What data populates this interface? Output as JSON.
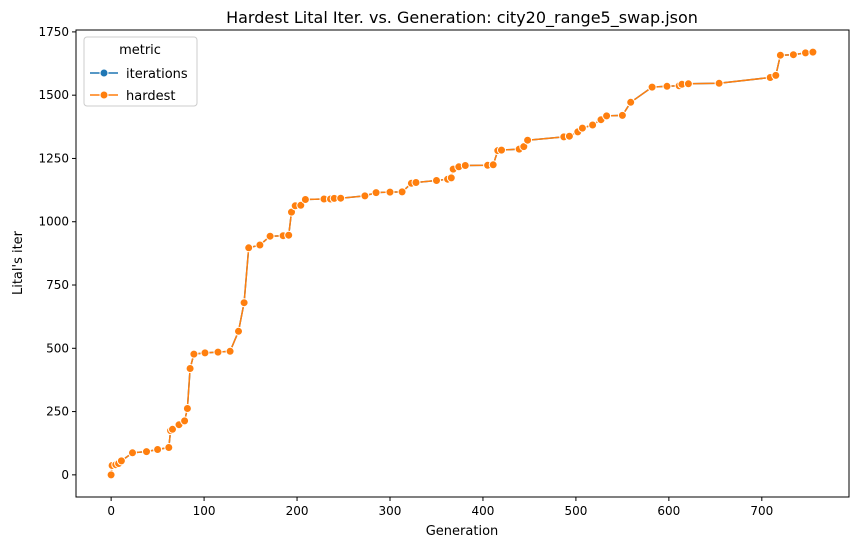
{
  "chart_data": {
    "type": "line",
    "title": "Hardest Lital Iter. vs. Generation: city20_range5_swap.json",
    "xlabel": "Generation",
    "ylabel": "Lital's iter",
    "xlim": [
      -37.8,
      793.8
    ],
    "ylim": [
      -87.5,
      1757.5
    ],
    "x_ticks": [
      0,
      100,
      200,
      300,
      400,
      500,
      600,
      700
    ],
    "y_ticks": [
      0,
      250,
      500,
      750,
      1000,
      1250,
      1500,
      1750
    ],
    "legend": {
      "title": "metric",
      "position": "upper-left"
    },
    "colors": {
      "iterations": "#1f77b4",
      "hardest": "#ff7f0e"
    },
    "series": [
      {
        "name": "iterations",
        "marker": "circle",
        "points": [
          [
            0,
            0
          ],
          [
            1,
            37
          ],
          [
            5,
            40
          ],
          [
            8,
            45
          ],
          [
            11,
            55
          ],
          [
            23,
            87
          ],
          [
            38,
            92
          ],
          [
            50,
            100
          ],
          [
            62,
            108
          ],
          [
            64,
            175
          ],
          [
            66,
            180
          ],
          [
            73,
            198
          ],
          [
            79,
            213
          ],
          [
            82,
            262
          ],
          [
            85,
            420
          ],
          [
            89,
            477
          ],
          [
            101,
            482
          ],
          [
            115,
            485
          ],
          [
            128,
            488
          ],
          [
            137,
            567
          ],
          [
            143,
            680
          ],
          [
            148,
            897
          ],
          [
            160,
            908
          ],
          [
            171,
            943
          ],
          [
            185,
            945
          ],
          [
            191,
            947
          ],
          [
            194,
            1038
          ],
          [
            198,
            1063
          ],
          [
            204,
            1065
          ],
          [
            209,
            1088
          ],
          [
            229,
            1090
          ],
          [
            236,
            1090
          ],
          [
            240,
            1092
          ],
          [
            247,
            1093
          ],
          [
            273,
            1102
          ],
          [
            285,
            1115
          ],
          [
            300,
            1117
          ],
          [
            313,
            1118
          ],
          [
            323,
            1152
          ],
          [
            328,
            1155
          ],
          [
            350,
            1163
          ],
          [
            362,
            1168
          ],
          [
            366,
            1173
          ],
          [
            368,
            1208
          ],
          [
            374,
            1217
          ],
          [
            381,
            1222
          ],
          [
            405,
            1223
          ],
          [
            411,
            1225
          ],
          [
            416,
            1281
          ],
          [
            420,
            1283
          ],
          [
            439,
            1287
          ],
          [
            444,
            1297
          ],
          [
            448,
            1322
          ],
          [
            487,
            1335
          ],
          [
            493,
            1338
          ],
          [
            502,
            1355
          ],
          [
            507,
            1370
          ],
          [
            518,
            1382
          ],
          [
            527,
            1403
          ],
          [
            533,
            1418
          ],
          [
            550,
            1420
          ],
          [
            559,
            1472
          ],
          [
            582,
            1532
          ],
          [
            598,
            1535
          ],
          [
            611,
            1537
          ],
          [
            614,
            1543
          ],
          [
            621,
            1545
          ],
          [
            654,
            1547
          ],
          [
            709,
            1570
          ],
          [
            715,
            1578
          ],
          [
            720,
            1658
          ],
          [
            734,
            1660
          ],
          [
            747,
            1667
          ],
          [
            755,
            1670
          ]
        ]
      },
      {
        "name": "hardest",
        "marker": "circle",
        "points": [
          [
            0,
            0
          ],
          [
            1,
            37
          ],
          [
            5,
            40
          ],
          [
            8,
            45
          ],
          [
            11,
            55
          ],
          [
            23,
            87
          ],
          [
            38,
            92
          ],
          [
            50,
            100
          ],
          [
            62,
            108
          ],
          [
            64,
            175
          ],
          [
            66,
            180
          ],
          [
            73,
            198
          ],
          [
            79,
            213
          ],
          [
            82,
            262
          ],
          [
            85,
            420
          ],
          [
            89,
            477
          ],
          [
            101,
            482
          ],
          [
            115,
            485
          ],
          [
            128,
            488
          ],
          [
            137,
            567
          ],
          [
            143,
            680
          ],
          [
            148,
            897
          ],
          [
            160,
            908
          ],
          [
            171,
            943
          ],
          [
            185,
            945
          ],
          [
            191,
            947
          ],
          [
            194,
            1038
          ],
          [
            198,
            1063
          ],
          [
            204,
            1065
          ],
          [
            209,
            1088
          ],
          [
            229,
            1090
          ],
          [
            236,
            1090
          ],
          [
            240,
            1092
          ],
          [
            247,
            1093
          ],
          [
            273,
            1102
          ],
          [
            285,
            1115
          ],
          [
            300,
            1117
          ],
          [
            313,
            1118
          ],
          [
            323,
            1152
          ],
          [
            328,
            1155
          ],
          [
            350,
            1163
          ],
          [
            362,
            1168
          ],
          [
            366,
            1173
          ],
          [
            368,
            1208
          ],
          [
            374,
            1217
          ],
          [
            381,
            1222
          ],
          [
            405,
            1223
          ],
          [
            411,
            1225
          ],
          [
            416,
            1281
          ],
          [
            420,
            1283
          ],
          [
            439,
            1287
          ],
          [
            444,
            1297
          ],
          [
            448,
            1322
          ],
          [
            487,
            1335
          ],
          [
            493,
            1338
          ],
          [
            502,
            1355
          ],
          [
            507,
            1370
          ],
          [
            518,
            1382
          ],
          [
            527,
            1403
          ],
          [
            533,
            1418
          ],
          [
            550,
            1420
          ],
          [
            559,
            1472
          ],
          [
            582,
            1532
          ],
          [
            598,
            1535
          ],
          [
            611,
            1537
          ],
          [
            614,
            1543
          ],
          [
            621,
            1545
          ],
          [
            654,
            1547
          ],
          [
            709,
            1570
          ],
          [
            715,
            1578
          ],
          [
            720,
            1658
          ],
          [
            734,
            1660
          ],
          [
            747,
            1667
          ],
          [
            755,
            1670
          ]
        ]
      }
    ]
  }
}
